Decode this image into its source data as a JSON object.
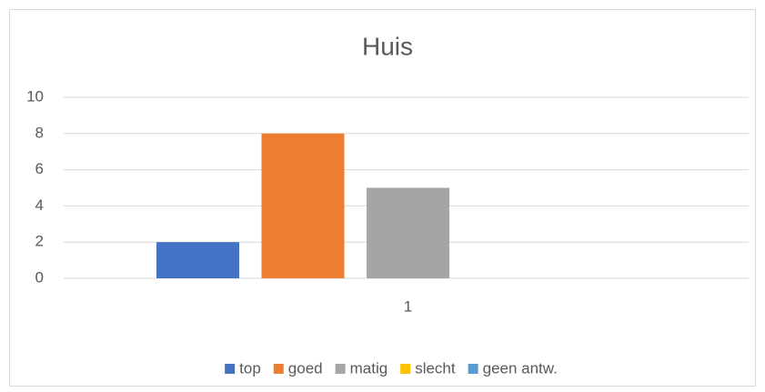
{
  "chart_data": {
    "type": "bar",
    "title": "Huis",
    "categories": [
      "1"
    ],
    "series": [
      {
        "name": "top",
        "color": "#4472c4",
        "values": [
          2
        ]
      },
      {
        "name": "goed",
        "color": "#ed7d31",
        "values": [
          8
        ]
      },
      {
        "name": "matig",
        "color": "#a5a5a5",
        "values": [
          5
        ]
      },
      {
        "name": "slecht",
        "color": "#ffc000",
        "values": [
          0
        ]
      },
      {
        "name": "geen antw.",
        "color": "#5b9bd5",
        "values": [
          0
        ]
      }
    ],
    "ylim": [
      0,
      10
    ],
    "yticks": [
      0,
      2,
      4,
      6,
      8,
      10
    ],
    "grid": true,
    "legend": "bottom"
  }
}
